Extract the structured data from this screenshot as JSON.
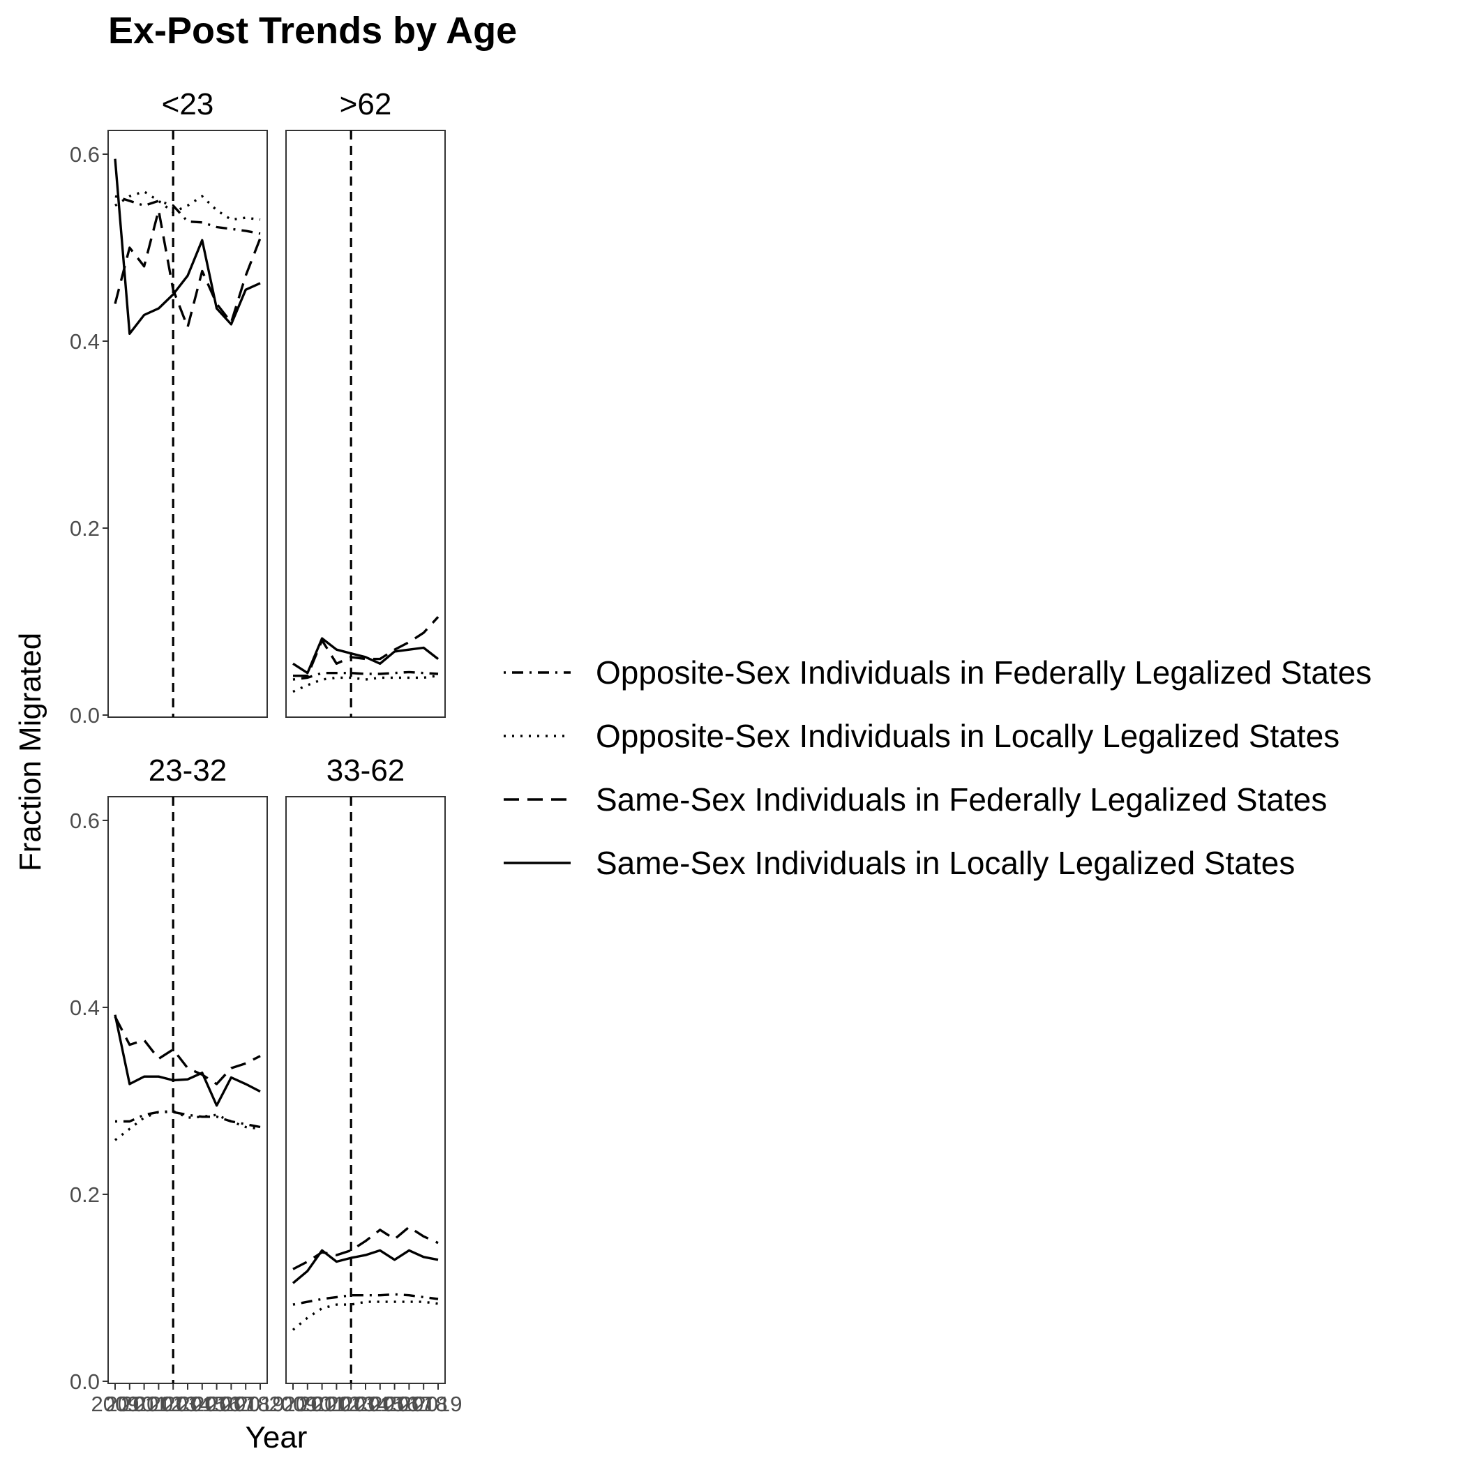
{
  "chart_data": {
    "type": "line",
    "title": "Ex-Post Trends by Age",
    "xlabel": "Year",
    "ylabel": "Fraction Migrated",
    "x": [
      2009,
      2010,
      2011,
      2012,
      2013,
      2014,
      2015,
      2016,
      2017,
      2018,
      2019
    ],
    "x_tick_labels": [
      "2009",
      "2010",
      "2011",
      "2012",
      "2013",
      "2014",
      "2015",
      "2016",
      "2017",
      "2018",
      "2019"
    ],
    "ylim": [
      0,
      0.6
    ],
    "y_ticks": [
      0.0,
      0.2,
      0.4,
      0.6
    ],
    "y_tick_labels": [
      "0.0",
      "0.2",
      "0.4",
      "0.6"
    ],
    "reference_line_x": 2013,
    "grid": false,
    "legend_position": "right",
    "legend": [
      {
        "label": "Opposite-Sex Individuals in Federally Legalized States",
        "dash": "dotdash"
      },
      {
        "label": "Opposite-Sex Individuals in Locally Legalized States",
        "dash": "dotted"
      },
      {
        "label": "Same-Sex Individuals in Federally Legalized States",
        "dash": "dashed"
      },
      {
        "label": "Same-Sex Individuals in Locally Legalized States",
        "dash": "solid"
      }
    ],
    "panels": [
      {
        "label": "<23",
        "series": [
          {
            "values": [
              0.555,
              0.55,
              0.545,
              0.55,
              0.545,
              0.528,
              0.527,
              0.522,
              0.52,
              0.518,
              0.515
            ]
          },
          {
            "values": [
              0.545,
              0.555,
              0.56,
              0.55,
              0.538,
              0.545,
              0.555,
              0.54,
              0.53,
              0.532,
              0.53
            ]
          },
          {
            "values": [
              0.44,
              0.5,
              0.48,
              0.54,
              0.455,
              0.415,
              0.475,
              0.44,
              0.42,
              0.47,
              0.51
            ]
          },
          {
            "values": [
              0.595,
              0.408,
              0.428,
              0.435,
              0.45,
              0.47,
              0.508,
              0.435,
              0.418,
              0.455,
              0.462
            ]
          }
        ]
      },
      {
        "label": ">62",
        "series": [
          {
            "values": [
              0.038,
              0.04,
              0.045,
              0.045,
              0.045,
              0.044,
              0.044,
              0.045,
              0.046,
              0.045,
              0.044
            ]
          },
          {
            "values": [
              0.025,
              0.032,
              0.038,
              0.04,
              0.04,
              0.038,
              0.04,
              0.04,
              0.04,
              0.04,
              0.042
            ]
          },
          {
            "values": [
              0.042,
              0.042,
              0.08,
              0.055,
              0.062,
              0.06,
              0.06,
              0.07,
              0.078,
              0.088,
              0.105
            ]
          },
          {
            "values": [
              0.055,
              0.045,
              0.082,
              0.07,
              0.066,
              0.062,
              0.055,
              0.068,
              0.07,
              0.072,
              0.06
            ]
          }
        ]
      },
      {
        "label": "23-32",
        "series": [
          {
            "values": [
              0.278,
              0.278,
              0.285,
              0.288,
              0.288,
              0.285,
              0.283,
              0.283,
              0.278,
              0.275,
              0.272
            ]
          },
          {
            "values": [
              0.258,
              0.27,
              0.282,
              0.288,
              0.289,
              0.282,
              0.283,
              0.285,
              0.278,
              0.272,
              0.27
            ]
          },
          {
            "values": [
              0.39,
              0.36,
              0.365,
              0.345,
              0.355,
              0.335,
              0.328,
              0.318,
              0.335,
              0.34,
              0.348
            ]
          },
          {
            "values": [
              0.392,
              0.318,
              0.326,
              0.326,
              0.322,
              0.323,
              0.33,
              0.295,
              0.325,
              0.318,
              0.31
            ]
          }
        ]
      },
      {
        "label": "33-62",
        "series": [
          {
            "values": [
              0.082,
              0.085,
              0.088,
              0.09,
              0.092,
              0.092,
              0.092,
              0.093,
              0.092,
              0.09,
              0.088
            ]
          },
          {
            "values": [
              0.055,
              0.068,
              0.078,
              0.082,
              0.082,
              0.085,
              0.085,
              0.085,
              0.085,
              0.085,
              0.083
            ]
          },
          {
            "values": [
              0.12,
              0.128,
              0.138,
              0.135,
              0.14,
              0.15,
              0.162,
              0.152,
              0.165,
              0.155,
              0.148
            ]
          },
          {
            "values": [
              0.105,
              0.118,
              0.14,
              0.128,
              0.132,
              0.135,
              0.14,
              0.13,
              0.14,
              0.133,
              0.13
            ]
          }
        ]
      }
    ]
  }
}
